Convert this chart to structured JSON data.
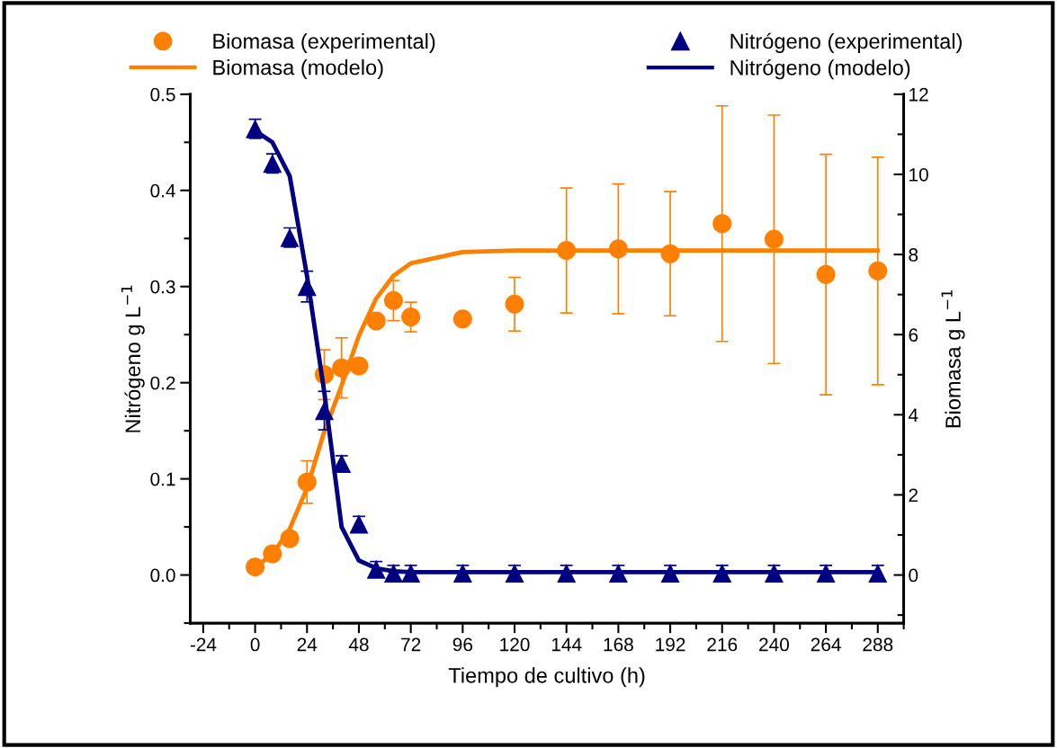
{
  "chart_data": {
    "type": "scatter",
    "xlabel": "Tiempo de cultivo (h)",
    "ylabel": "Nitrógeno g L$^{−1}$",
    "y2label": "Biomasa g L$^{−1}$",
    "xlim": [
      -30,
      300
    ],
    "xticks": [
      -24,
      0,
      24,
      48,
      72,
      96,
      120,
      144,
      168,
      192,
      216,
      240,
      264,
      288
    ],
    "ylim": [
      -0.05,
      0.5
    ],
    "yticks": [
      {
        "value": 0,
        "label": "0.0"
      },
      0.1,
      0.2,
      0.3,
      0.4,
      0.5
    ],
    "y2lim": [
      -1.2,
      12
    ],
    "y2ticks": [
      0,
      2,
      4,
      6,
      8,
      10,
      12
    ],
    "legend": "top",
    "grid": false,
    "series": [
      {
        "name": "Biomasa (experimental)",
        "axis": "y2",
        "marker": "circle",
        "color": "#ff8000",
        "x": [
          0,
          8,
          16,
          24,
          32,
          40,
          48,
          56,
          64,
          72,
          96,
          120,
          144,
          168,
          192,
          216,
          240,
          264,
          288
        ],
        "values": [
          0.2,
          0.53,
          0.91,
          2.32,
          5.0,
          5.17,
          5.22,
          6.34,
          6.85,
          6.44,
          6.39,
          6.76,
          8.1,
          8.14,
          8.02,
          8.77,
          8.38,
          7.5,
          7.59
        ],
        "errors": [
          null,
          null,
          null,
          0.53,
          0.62,
          0.75,
          null,
          null,
          0.5,
          0.37,
          null,
          0.67,
          1.56,
          1.62,
          1.55,
          2.94,
          3.1,
          3.0,
          2.84
        ]
      },
      {
        "name": "Nitrógeno (experimental)",
        "axis": "y",
        "marker": "triangle",
        "color": "#000080",
        "x": [
          0,
          8,
          16,
          24,
          32,
          40,
          48,
          56,
          64,
          72,
          96,
          120,
          144,
          168,
          192,
          216,
          240,
          264,
          288
        ],
        "values": [
          0.464,
          0.428,
          0.351,
          0.3,
          0.171,
          0.116,
          0.053,
          0.006,
          0.002,
          0.002,
          0.002,
          0.002,
          0.002,
          0.002,
          0.002,
          0.002,
          0.002,
          0.002,
          0.002
        ],
        "errors": [
          0.01,
          0.01,
          0.01,
          0.016,
          0.02,
          0.008,
          0.008,
          0.008,
          0.008,
          0.008,
          0.008,
          0.008,
          0.008,
          0.008,
          0.008,
          0.008,
          0.008,
          0.008,
          0.008
        ]
      },
      {
        "name": "Biomasa (modelo)",
        "type": "line",
        "axis": "y2",
        "marker": "none",
        "line_style": "solid",
        "color": "#ff8000",
        "x": [
          0,
          8,
          16,
          24,
          32,
          40,
          48,
          56,
          64,
          72,
          96,
          120,
          144,
          168,
          192,
          216,
          240,
          264,
          288
        ],
        "values": [
          0.2,
          0.51,
          1.15,
          2.17,
          3.58,
          4.73,
          5.97,
          6.9,
          7.47,
          7.78,
          8.06,
          8.1,
          8.1,
          8.1,
          8.1,
          8.1,
          8.1,
          8.1,
          8.1
        ]
      },
      {
        "name": "Nitrógeno (modelo)",
        "type": "line",
        "axis": "y",
        "marker": "none",
        "line_style": "solid",
        "color": "#000080",
        "x": [
          0,
          8,
          16,
          24,
          32,
          40,
          48,
          56,
          64,
          72,
          96,
          120,
          144,
          168,
          192,
          216,
          240,
          264,
          288
        ],
        "values": [
          0.462,
          0.45,
          0.415,
          0.311,
          0.19,
          0.05,
          0.015,
          0.007,
          0.004,
          0.003,
          0.003,
          0.003,
          0.003,
          0.003,
          0.003,
          0.003,
          0.003,
          0.003,
          0.003
        ]
      }
    ]
  }
}
